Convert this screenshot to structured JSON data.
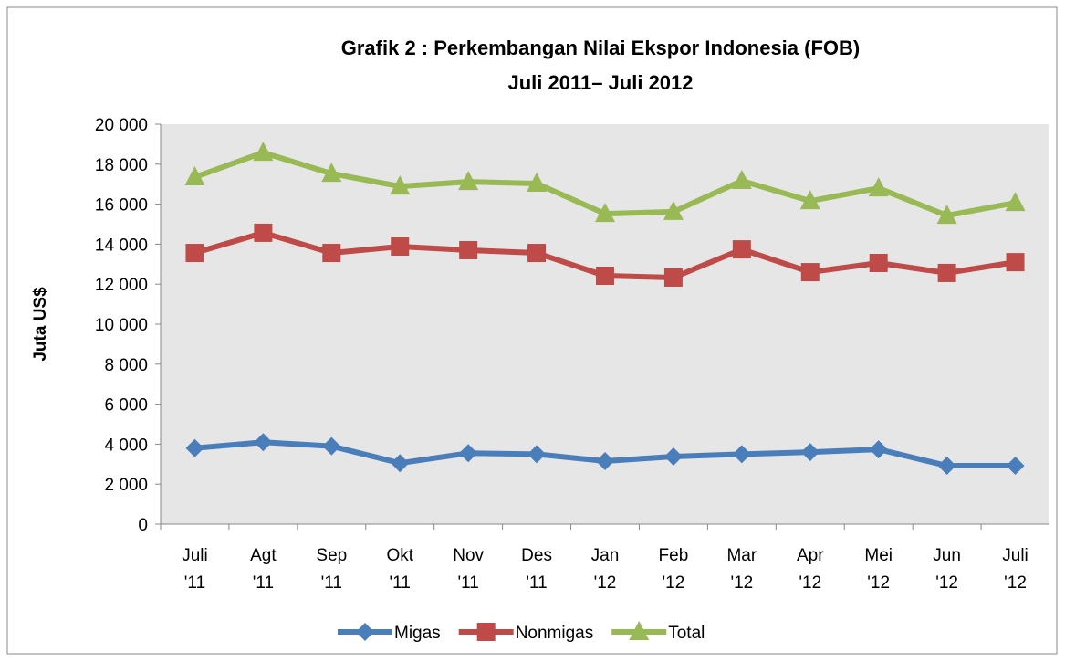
{
  "chart_data": {
    "type": "line",
    "title": "Grafik 2 : Perkembangan Nilai Ekspor Indonesia (FOB)",
    "subtitle": "Juli 2011– Juli 2012",
    "y_label": "Juta US$",
    "categories": [
      "Juli '11",
      "Agt '11",
      "Sep '11",
      "Okt '11",
      "Nov '11",
      "Des '11",
      "Jan '12",
      "Feb '12",
      "Mar '12",
      "Apr '12",
      "Mei '12",
      "Jun '12",
      "Juli '12"
    ],
    "series": [
      {
        "name": "Migas",
        "color": "#4a7ebb",
        "marker": "diamond",
        "values": [
          3800,
          4100,
          3900,
          3050,
          3550,
          3500,
          3150,
          3380,
          3500,
          3600,
          3740,
          2920,
          2920
        ]
      },
      {
        "name": "Nonmigas",
        "color": "#be4b48",
        "marker": "square",
        "values": [
          13560,
          14570,
          13560,
          13880,
          13700,
          13560,
          12420,
          12330,
          13740,
          12600,
          13060,
          12560,
          13100
        ]
      },
      {
        "name": "Total",
        "color": "#98b954",
        "marker": "triangle",
        "values": [
          17350,
          18580,
          17530,
          16890,
          17120,
          17030,
          15520,
          15620,
          17170,
          16160,
          16800,
          15430,
          16070
        ]
      }
    ],
    "ylim": [
      0,
      20000
    ],
    "yticks": [
      0,
      {
        "value": 2000,
        "label": "2 000"
      },
      {
        "value": 4000,
        "label": "4 000"
      },
      {
        "value": 6000,
        "label": "6 000"
      },
      {
        "value": 8000,
        "label": "8 000"
      },
      {
        "value": 10000,
        "label": "10 000"
      },
      {
        "value": 12000,
        "label": "12 000"
      },
      {
        "value": 14000,
        "label": "14 000"
      },
      {
        "value": 16000,
        "label": "16 000"
      },
      {
        "value": 18000,
        "label": "18 000"
      },
      {
        "value": 20000,
        "label": "20 000"
      }
    ],
    "grid": false,
    "legend": "bottom",
    "plot_background": "#e6e6e6"
  }
}
